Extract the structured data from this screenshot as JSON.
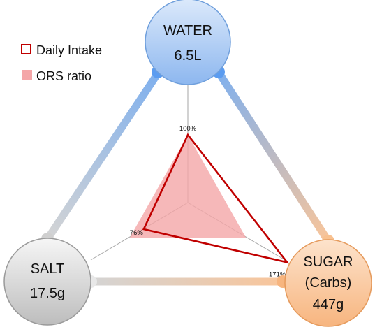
{
  "chart_data": {
    "type": "radar",
    "axes": [
      {
        "name": "WATER",
        "amount": "6.5L"
      },
      {
        "name": "SALT",
        "amount": "17.5g"
      },
      {
        "name": "SUGAR",
        "name_line2": "(Carbs)",
        "amount": "447g"
      }
    ],
    "series": [
      {
        "name": "Daily Intake",
        "style": "outline",
        "color": "#c00000",
        "values": [
          100,
          76,
          171
        ]
      },
      {
        "name": "ORS ratio",
        "style": "filled",
        "color": "#f4a6a8",
        "values": [
          100,
          100,
          100
        ]
      }
    ],
    "tick_labels": [
      "100%",
      "76%",
      "171%"
    ],
    "legend_position": "top-left",
    "colors": {
      "water": "#9dc3f3",
      "salt": "#c9c9c9",
      "sugar": "#fbc99f"
    }
  }
}
